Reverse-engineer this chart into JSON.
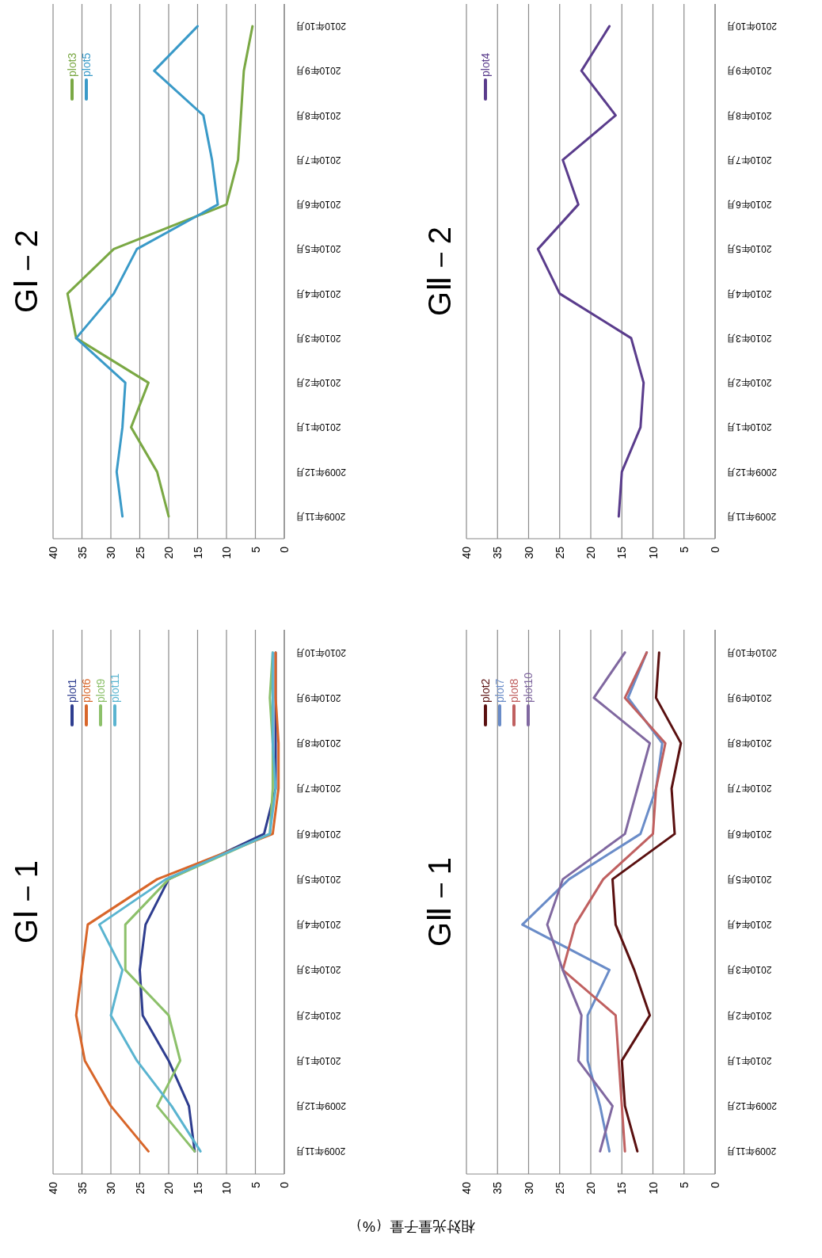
{
  "chart_data": [
    {
      "type": "line",
      "orientation": "horizontal",
      "title": "GⅠ－1",
      "ylabel": "相対光量子量（%）",
      "categories": [
        "2010年10月",
        "2010年9月",
        "2010年8月",
        "2010年7月",
        "2010年6月",
        "2010年5月",
        "2010年4月",
        "2010年3月",
        "2010年2月",
        "2010年1月",
        "2009年12月",
        "2009年11月"
      ],
      "xlim": [
        40,
        0
      ],
      "xticks": [
        40,
        35,
        30,
        25,
        20,
        15,
        10,
        5,
        0
      ],
      "grid": "x",
      "legend": "top left",
      "series": [
        {
          "name": "plot1",
          "color": "#2e3d8f",
          "values": [
            1.5,
            1.5,
            1.5,
            1.5,
            3.5,
            20,
            24,
            25,
            24.5,
            20,
            16.5,
            15.5
          ]
        },
        {
          "name": "plot6",
          "color": "#d8662a",
          "values": [
            1.5,
            1.5,
            1,
            1,
            2,
            22,
            34,
            35,
            36,
            34.5,
            30,
            23.5
          ]
        },
        {
          "name": "plot9",
          "color": "#8cc06a",
          "values": [
            2,
            2.5,
            2,
            2,
            2.5,
            20,
            27.5,
            27.5,
            20,
            18,
            22,
            15.5
          ]
        },
        {
          "name": "plot11",
          "color": "#5ab4d0",
          "values": [
            2,
            2,
            2,
            1.5,
            2.5,
            20.5,
            32,
            28,
            30,
            25.5,
            19.5,
            14.5
          ]
        }
      ]
    },
    {
      "type": "line",
      "orientation": "horizontal",
      "title": "GⅠ－2",
      "categories": [
        "2010年10月",
        "2010年9月",
        "2010年8月",
        "2010年7月",
        "2010年6月",
        "2010年5月",
        "2010年4月",
        "2010年3月",
        "2010年2月",
        "2010年1月",
        "2009年12月",
        "2009年11月"
      ],
      "xlim": [
        40,
        0
      ],
      "xticks": [
        40,
        35,
        30,
        25,
        20,
        15,
        10,
        5,
        0
      ],
      "grid": "x",
      "legend": "top left",
      "series": [
        {
          "name": "plot3",
          "color": "#7aa844",
          "values": [
            5.5,
            7,
            7.5,
            8,
            10,
            29.5,
            37.5,
            36,
            23.5,
            26.5,
            22,
            20
          ]
        },
        {
          "name": "plot5",
          "color": "#3a9ac8",
          "values": [
            15,
            22.5,
            14,
            12.5,
            11.5,
            25.5,
            29.5,
            36,
            27.5,
            28,
            29,
            28
          ]
        }
      ]
    },
    {
      "type": "line",
      "orientation": "horizontal",
      "title": "GⅡ－1",
      "categories": [
        "2010年10月",
        "2010年9月",
        "2010年8月",
        "2010年7月",
        "2010年6月",
        "2010年5月",
        "2010年4月",
        "2010年3月",
        "2010年2月",
        "2010年1月",
        "2009年12月",
        "2009年11月"
      ],
      "xlim": [
        40,
        0
      ],
      "xticks": [
        40,
        35,
        30,
        25,
        20,
        15,
        10,
        5,
        0
      ],
      "grid": "x",
      "legend": "top left",
      "series": [
        {
          "name": "plot2",
          "color": "#5a1010",
          "values": [
            9,
            9.5,
            5.5,
            7,
            6.5,
            16.5,
            16,
            13,
            10.5,
            15,
            14.5,
            12.5
          ]
        },
        {
          "name": "plot7",
          "color": "#6a8cc8",
          "values": [
            11,
            14,
            8.5,
            9.5,
            12,
            23.5,
            31,
            17,
            20.5,
            20.5,
            18.5,
            17
          ]
        },
        {
          "name": "plot8",
          "color": "#c06060",
          "values": [
            11,
            14.5,
            8,
            9.5,
            10,
            18,
            22.5,
            24.5,
            16,
            15.5,
            15,
            14.5
          ]
        },
        {
          "name": "plot10",
          "color": "#8068a0",
          "values": [
            14.5,
            19.5,
            10.5,
            12.5,
            14.5,
            24.5,
            27,
            24.5,
            21.5,
            22,
            16.5,
            18.5
          ]
        }
      ]
    },
    {
      "type": "line",
      "orientation": "horizontal",
      "title": "GⅡ－2",
      "categories": [
        "2010年10月",
        "2010年9月",
        "2010年8月",
        "2010年7月",
        "2010年6月",
        "2010年5月",
        "2010年4月",
        "2010年3月",
        "2010年2月",
        "2010年1月",
        "2009年12月",
        "2009年11月"
      ],
      "xlim": [
        40,
        0
      ],
      "xticks": [
        40,
        35,
        30,
        25,
        20,
        15,
        10,
        5,
        0
      ],
      "grid": "x",
      "legend": "top left",
      "series": [
        {
          "name": "plot4",
          "color": "#5a3c8c",
          "values": [
            17,
            21.5,
            16,
            24.5,
            22,
            28.5,
            25,
            13.5,
            11.5,
            12,
            15,
            15.5
          ]
        }
      ]
    }
  ]
}
